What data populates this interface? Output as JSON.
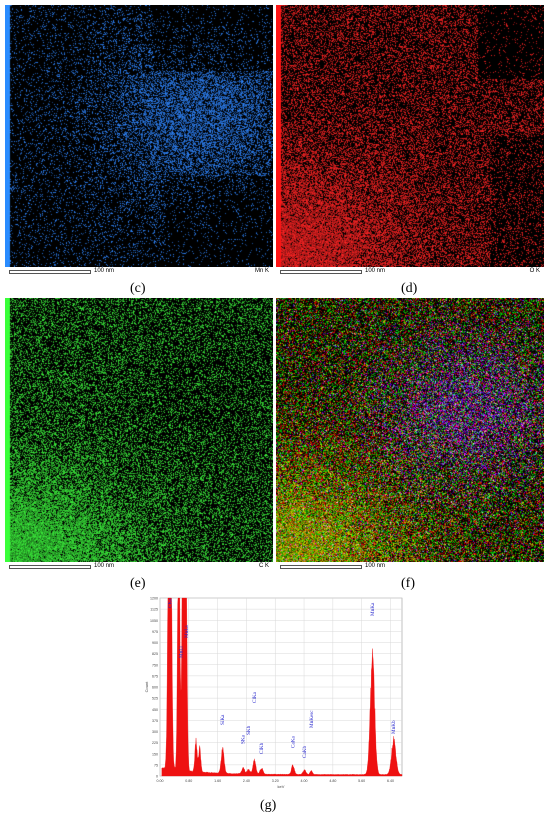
{
  "panels": [
    {
      "id": "c",
      "label": "(c)",
      "element": "Mn K",
      "scale": "100 nm",
      "color": "#2f86ff"
    },
    {
      "id": "d",
      "label": "(d)",
      "element": "O K",
      "scale": "100 nm",
      "color": "#ff2020"
    },
    {
      "id": "e",
      "label": "(e)",
      "element": "C K",
      "scale": "100 nm",
      "color": "#35e835"
    },
    {
      "id": "f",
      "label": "(f)",
      "element": "",
      "scale": "100 nm",
      "color": "#c040ff"
    }
  ],
  "spectrum": {
    "label": "(g)",
    "y_label": "Count",
    "x_label": "keV",
    "y_ticks": [
      "0",
      "75",
      "150",
      "225",
      "300",
      "375",
      "450",
      "525",
      "600",
      "675",
      "750",
      "825",
      "900",
      "975",
      "1050",
      "1125",
      "1200"
    ],
    "x_ticks": [
      "0.00",
      "0.80",
      "1.60",
      "2.40",
      "3.20",
      "4.00",
      "4.80",
      "5.60",
      "6.40"
    ],
    "peaks": [
      "CKa",
      "MnLa",
      "MnLl",
      "SiKa",
      "SKa",
      "SKb",
      "ClKa",
      "ClKb",
      "CaKa",
      "CaKb",
      "MnKesc",
      "MnKa",
      "MnKb"
    ],
    "colors": {
      "fill": "#ee1111",
      "label": "#2222cc"
    }
  }
}
